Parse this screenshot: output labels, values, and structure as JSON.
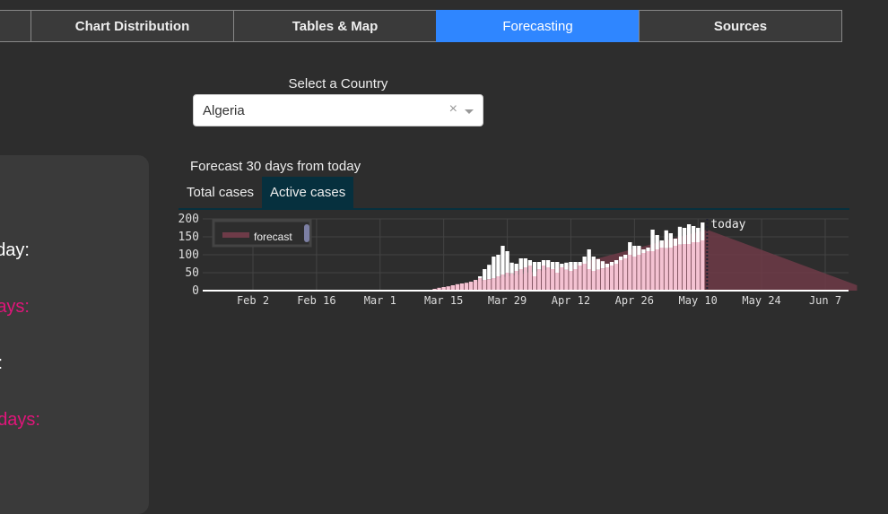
{
  "tabs": [
    {
      "label": ""
    },
    {
      "label": "Chart Distribution"
    },
    {
      "label": "Tables & Map"
    },
    {
      "label": "Forecasting",
      "active": true
    },
    {
      "label": "Sources"
    }
  ],
  "selector": {
    "label": "Select a Country",
    "value": "Algeria",
    "clear_icon": "×"
  },
  "left_panel": {
    "lines": [
      {
        "text": "day:",
        "color": "#ffffff"
      },
      {
        "text": "ays:",
        "color": "#e0157a"
      },
      {
        "text": ":",
        "color": "#ffffff"
      },
      {
        "text": "days:",
        "color": "#e0157a"
      }
    ]
  },
  "forecast": {
    "title": "Forecast 30 days from today",
    "subtabs": [
      "Total cases",
      "Active cases"
    ],
    "active_subtab": 1
  },
  "chart_data": {
    "type": "bar",
    "x_ticks": [
      "Feb 2",
      "Feb 16",
      "Mar 1",
      "Mar 15",
      "Mar 29",
      "Apr 12",
      "Apr 26",
      "May 10",
      "May 24",
      "Jun 7"
    ],
    "y_ticks": [
      "0",
      "50",
      "100",
      "150",
      "200"
    ],
    "ylim": [
      0,
      210
    ],
    "legend": {
      "entries": [
        "forecast"
      ],
      "placement": "top-left"
    },
    "annotation": "today",
    "today": "May 12",
    "bars_start": "Mar 13",
    "active_values": [
      5,
      8,
      10,
      12,
      15,
      18,
      20,
      22,
      25,
      30,
      35,
      30,
      32,
      35,
      40,
      45,
      50,
      48,
      55,
      60,
      65,
      70,
      40,
      60,
      70,
      65,
      60,
      50,
      65,
      58,
      55,
      60,
      70,
      75,
      60,
      55,
      58,
      62,
      65,
      70,
      75,
      85,
      90,
      100,
      95,
      100,
      105,
      110,
      110,
      115,
      120,
      118,
      120,
      125,
      128,
      130,
      130,
      135,
      135,
      140
    ],
    "extra_values": [
      0,
      0,
      0,
      0,
      0,
      0,
      0,
      0,
      0,
      0,
      5,
      30,
      40,
      60,
      60,
      80,
      60,
      30,
      20,
      30,
      25,
      15,
      40,
      20,
      15,
      20,
      20,
      30,
      10,
      20,
      25,
      20,
      10,
      20,
      55,
      40,
      30,
      20,
      10,
      10,
      10,
      10,
      10,
      35,
      30,
      25,
      10,
      10,
      60,
      40,
      20,
      50,
      40,
      20,
      50,
      45,
      55,
      45,
      40,
      50
    ],
    "forecast_points": [
      [
        "Mar 13",
        5
      ],
      [
        "Apr 12",
        70
      ],
      [
        "May 12",
        170
      ],
      [
        "Jun 14",
        15
      ]
    ],
    "colors": {
      "active": "#f4c2d2",
      "extra": "#ffffff",
      "forecast": "#6e3b48"
    }
  }
}
